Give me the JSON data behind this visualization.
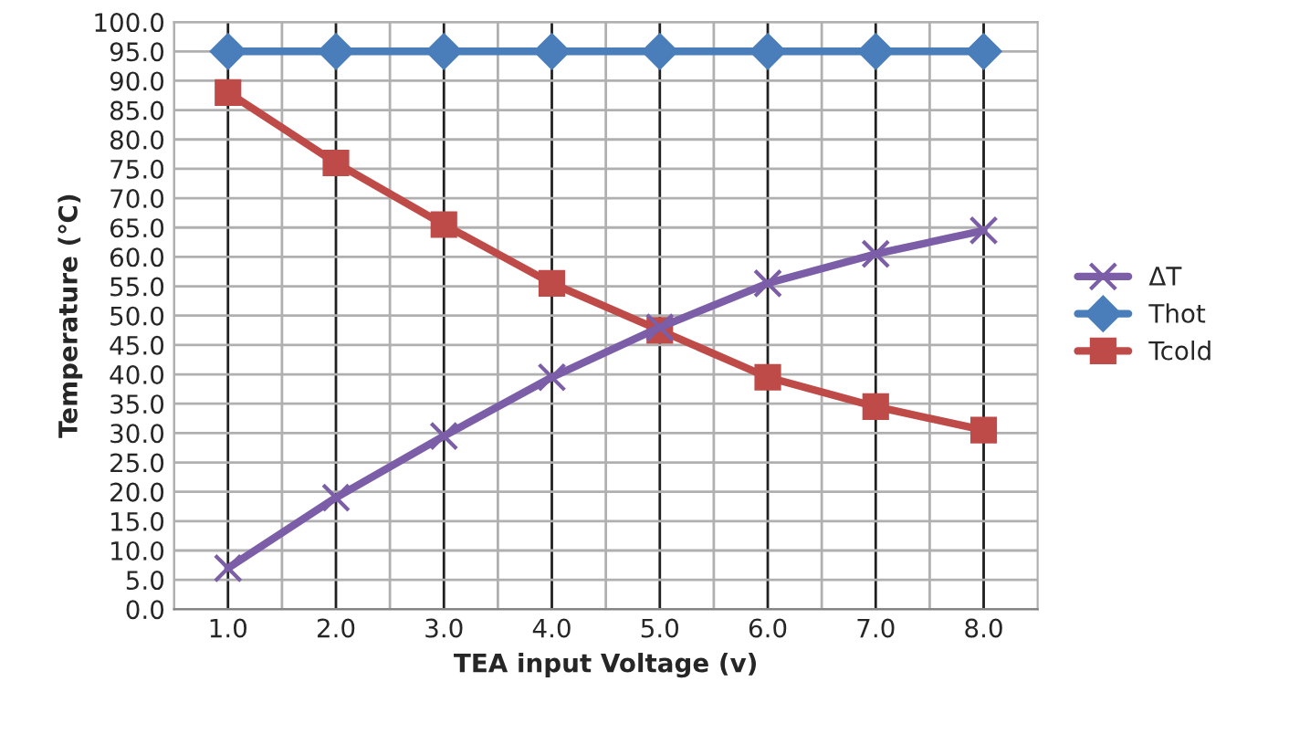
{
  "chart_data": {
    "type": "line",
    "xlabel": "TEA input Voltage (v)",
    "ylabel": "Temperature (℃)",
    "categories": [
      "1.0",
      "2.0",
      "3.0",
      "4.0",
      "5.0",
      "6.0",
      "7.0",
      "8.0"
    ],
    "series": [
      {
        "name": "ΔT",
        "color": "#7b5ea7",
        "marker": "cross",
        "values": [
          7,
          19,
          29.5,
          39.5,
          48,
          55.5,
          60.5,
          64.5
        ]
      },
      {
        "name": "Thot",
        "color": "#4a7ebb",
        "marker": "diamond",
        "values": [
          95,
          95,
          95,
          95,
          95,
          95,
          95,
          95
        ]
      },
      {
        "name": "Tcold",
        "color": "#be4b48",
        "marker": "square",
        "values": [
          88,
          76,
          65.5,
          55.5,
          47.5,
          39.5,
          34.5,
          30.5
        ]
      }
    ],
    "ylim": [
      0,
      100
    ],
    "yticks": [
      {
        "value": 0,
        "label": "0.0"
      },
      {
        "value": 5,
        "label": "5.0"
      },
      {
        "value": 10,
        "label": "10.0"
      },
      {
        "value": 15,
        "label": "15.0"
      },
      {
        "value": 20,
        "label": "20.0"
      },
      {
        "value": 25,
        "label": "25.0"
      },
      {
        "value": 30,
        "label": "30.0"
      },
      {
        "value": 35,
        "label": "35.0"
      },
      {
        "value": 40,
        "label": "40.0"
      },
      {
        "value": 45,
        "label": "45.0"
      },
      {
        "value": 50,
        "label": "50.0"
      },
      {
        "value": 55,
        "label": "55.0"
      },
      {
        "value": 60,
        "label": "60.0"
      },
      {
        "value": 65,
        "label": "65.0"
      },
      {
        "value": 70,
        "label": "70.0"
      },
      {
        "value": 75,
        "label": "75.0"
      },
      {
        "value": 80,
        "label": "80.0"
      },
      {
        "value": 85,
        "label": "85.0"
      },
      {
        "value": 90,
        "label": "90.0"
      },
      {
        "value": 95,
        "label": "95.0"
      },
      {
        "value": 100,
        "label": "100.0"
      }
    ],
    "grid": true,
    "legend": "right",
    "line_style": "solid"
  }
}
